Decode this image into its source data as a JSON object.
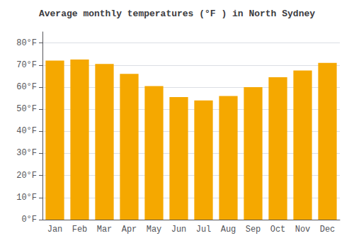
{
  "chart_data": {
    "type": "bar",
    "title": "Average monthly temperatures (°F ) in North Sydney",
    "categories": [
      "Jan",
      "Feb",
      "Mar",
      "Apr",
      "May",
      "Jun",
      "Jul",
      "Aug",
      "Sep",
      "Oct",
      "Nov",
      "Dec"
    ],
    "values": [
      72,
      72.5,
      70.5,
      66,
      60.5,
      55.5,
      54,
      56,
      60,
      64.5,
      67.5,
      71
    ],
    "color": "#F5A800",
    "ylim": [
      0,
      85
    ],
    "yticks": [
      {
        "value": 0,
        "label": "0°F"
      },
      {
        "value": 10,
        "label": "10°F"
      },
      {
        "value": 20,
        "label": "20°F"
      },
      {
        "value": 30,
        "label": "30°F"
      },
      {
        "value": 40,
        "label": "40°F"
      },
      {
        "value": 50,
        "label": "50°F"
      },
      {
        "value": 60,
        "label": "60°F"
      },
      {
        "value": 70,
        "label": "70°F"
      },
      {
        "value": 80,
        "label": "80°F"
      }
    ],
    "grid": true
  }
}
